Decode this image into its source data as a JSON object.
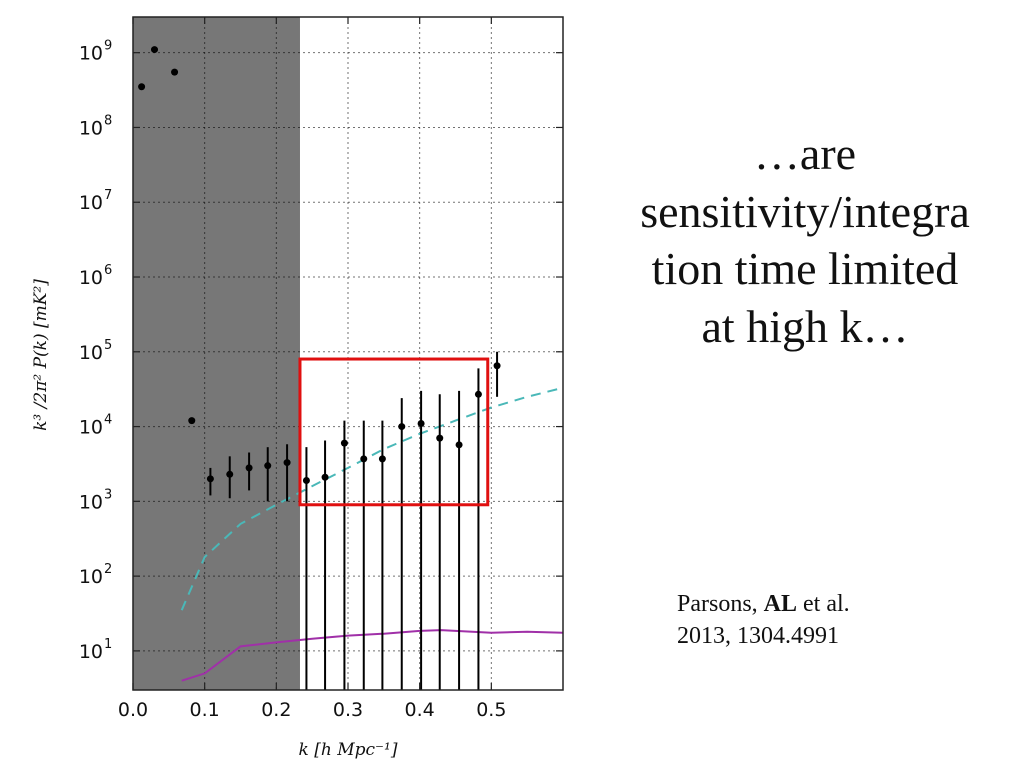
{
  "slide": {
    "headline_lines": [
      "…are",
      "sensitivity/integra",
      "tion time limited",
      "at high k…"
    ],
    "citation": {
      "authors_prefix": "Parsons,",
      "authors_bold": "AL",
      "authors_suffix": "et al.",
      "ref": "2013, 1304.4991"
    }
  },
  "chart_data": {
    "type": "scatter",
    "title": "",
    "xlabel": "k [h Mpc⁻¹]",
    "ylabel": "k³ /2π²  P(k) [mK²]",
    "xlim": [
      0.0,
      0.6
    ],
    "ylim": [
      3,
      3000000000
    ],
    "yscale": "log",
    "grid": true,
    "x_ticks": [
      "0.0",
      "0.1",
      "0.2",
      "0.3",
      "0.4",
      "0.5"
    ],
    "y_tick_exponents": [
      1,
      2,
      3,
      4,
      5,
      6,
      7,
      8,
      9
    ],
    "y_tick_base": "10",
    "shaded_region": {
      "x": [
        0.0,
        0.233
      ],
      "color": "#777777"
    },
    "highlight_box": {
      "x": [
        0.233,
        0.495
      ],
      "y": [
        900,
        80000
      ],
      "color": "#e01010"
    },
    "series": [
      {
        "kind": "errorbar",
        "color": "#000000",
        "points": [
          {
            "x": 0.012,
            "y": 350000000
          },
          {
            "x": 0.03,
            "y": 1100000000
          },
          {
            "x": 0.058,
            "y": 550000000
          },
          {
            "x": 0.082,
            "y": 12000
          },
          {
            "x": 0.108,
            "y": 2000,
            "lo": 1200,
            "hi": 2800
          },
          {
            "x": 0.135,
            "y": 2300,
            "lo": 1100,
            "hi": 4000
          },
          {
            "x": 0.162,
            "y": 2800,
            "lo": 1400,
            "hi": 4500
          },
          {
            "x": 0.188,
            "y": 3000,
            "lo": 1000,
            "hi": 5300
          },
          {
            "x": 0.215,
            "y": 3300,
            "lo": 1000,
            "hi": 5800
          },
          {
            "x": 0.242,
            "y": 1900,
            "lo": 3,
            "hi": 5300
          },
          {
            "x": 0.268,
            "y": 2100,
            "lo": 3,
            "hi": 6500
          },
          {
            "x": 0.295,
            "y": 6000,
            "lo": 3,
            "hi": 12000
          },
          {
            "x": 0.322,
            "y": 3700,
            "lo": 3,
            "hi": 12000
          },
          {
            "x": 0.348,
            "y": 3700,
            "lo": 3,
            "hi": 12000
          },
          {
            "x": 0.375,
            "y": 10000,
            "lo": 3,
            "hi": 24000
          },
          {
            "x": 0.402,
            "y": 11000,
            "lo": 3,
            "hi": 30000
          },
          {
            "x": 0.428,
            "y": 7000,
            "lo": 3,
            "hi": 27000
          },
          {
            "x": 0.455,
            "y": 5700,
            "lo": 3,
            "hi": 30000
          },
          {
            "x": 0.482,
            "y": 27000,
            "lo": 3,
            "hi": 60000
          },
          {
            "x": 0.508,
            "y": 65000,
            "lo": 25000,
            "hi": 100000
          }
        ]
      },
      {
        "kind": "dashed",
        "color": "#4ab8b8",
        "points": [
          {
            "x": 0.068,
            "y": 35
          },
          {
            "x": 0.1,
            "y": 180
          },
          {
            "x": 0.15,
            "y": 500
          },
          {
            "x": 0.2,
            "y": 900
          },
          {
            "x": 0.25,
            "y": 1600
          },
          {
            "x": 0.3,
            "y": 2800
          },
          {
            "x": 0.35,
            "y": 5000
          },
          {
            "x": 0.4,
            "y": 8000
          },
          {
            "x": 0.45,
            "y": 12000
          },
          {
            "x": 0.5,
            "y": 18000
          },
          {
            "x": 0.55,
            "y": 25000
          },
          {
            "x": 0.6,
            "y": 33000
          }
        ]
      },
      {
        "kind": "line",
        "color": "#a030a8",
        "points": [
          {
            "x": 0.068,
            "y": 4
          },
          {
            "x": 0.1,
            "y": 5
          },
          {
            "x": 0.15,
            "y": 11.5
          },
          {
            "x": 0.2,
            "y": 13
          },
          {
            "x": 0.25,
            "y": 14.5
          },
          {
            "x": 0.3,
            "y": 16
          },
          {
            "x": 0.35,
            "y": 17
          },
          {
            "x": 0.4,
            "y": 18.5
          },
          {
            "x": 0.43,
            "y": 19
          },
          {
            "x": 0.5,
            "y": 17.5
          },
          {
            "x": 0.55,
            "y": 18
          },
          {
            "x": 0.6,
            "y": 17.5
          }
        ]
      }
    ]
  }
}
